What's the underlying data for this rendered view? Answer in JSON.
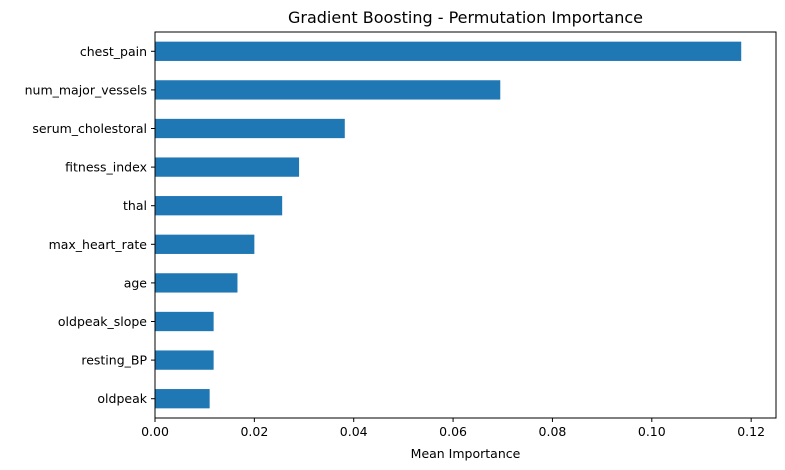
{
  "chart_data": {
    "type": "bar",
    "orientation": "horizontal",
    "title": "Gradient Boosting - Permutation Importance",
    "xlabel": "Mean Importance",
    "ylabel": "",
    "xlim": [
      0.0,
      0.125
    ],
    "xticks": [
      0.0,
      0.02,
      0.04,
      0.06,
      0.08,
      0.1,
      0.12
    ],
    "xtick_labels": [
      "0.00",
      "0.02",
      "0.04",
      "0.06",
      "0.08",
      "0.10",
      "0.12"
    ],
    "grid": false,
    "bar_color": "#1f77b4",
    "categories": [
      "chest_pain",
      "num_major_vessels",
      "serum_cholestoral",
      "fitness_index",
      "thal",
      "max_heart_rate",
      "age",
      "oldpeak_slope",
      "resting_BP",
      "oldpeak"
    ],
    "values": [
      0.118,
      0.0695,
      0.0382,
      0.029,
      0.0256,
      0.02,
      0.0166,
      0.0118,
      0.0118,
      0.011
    ]
  }
}
